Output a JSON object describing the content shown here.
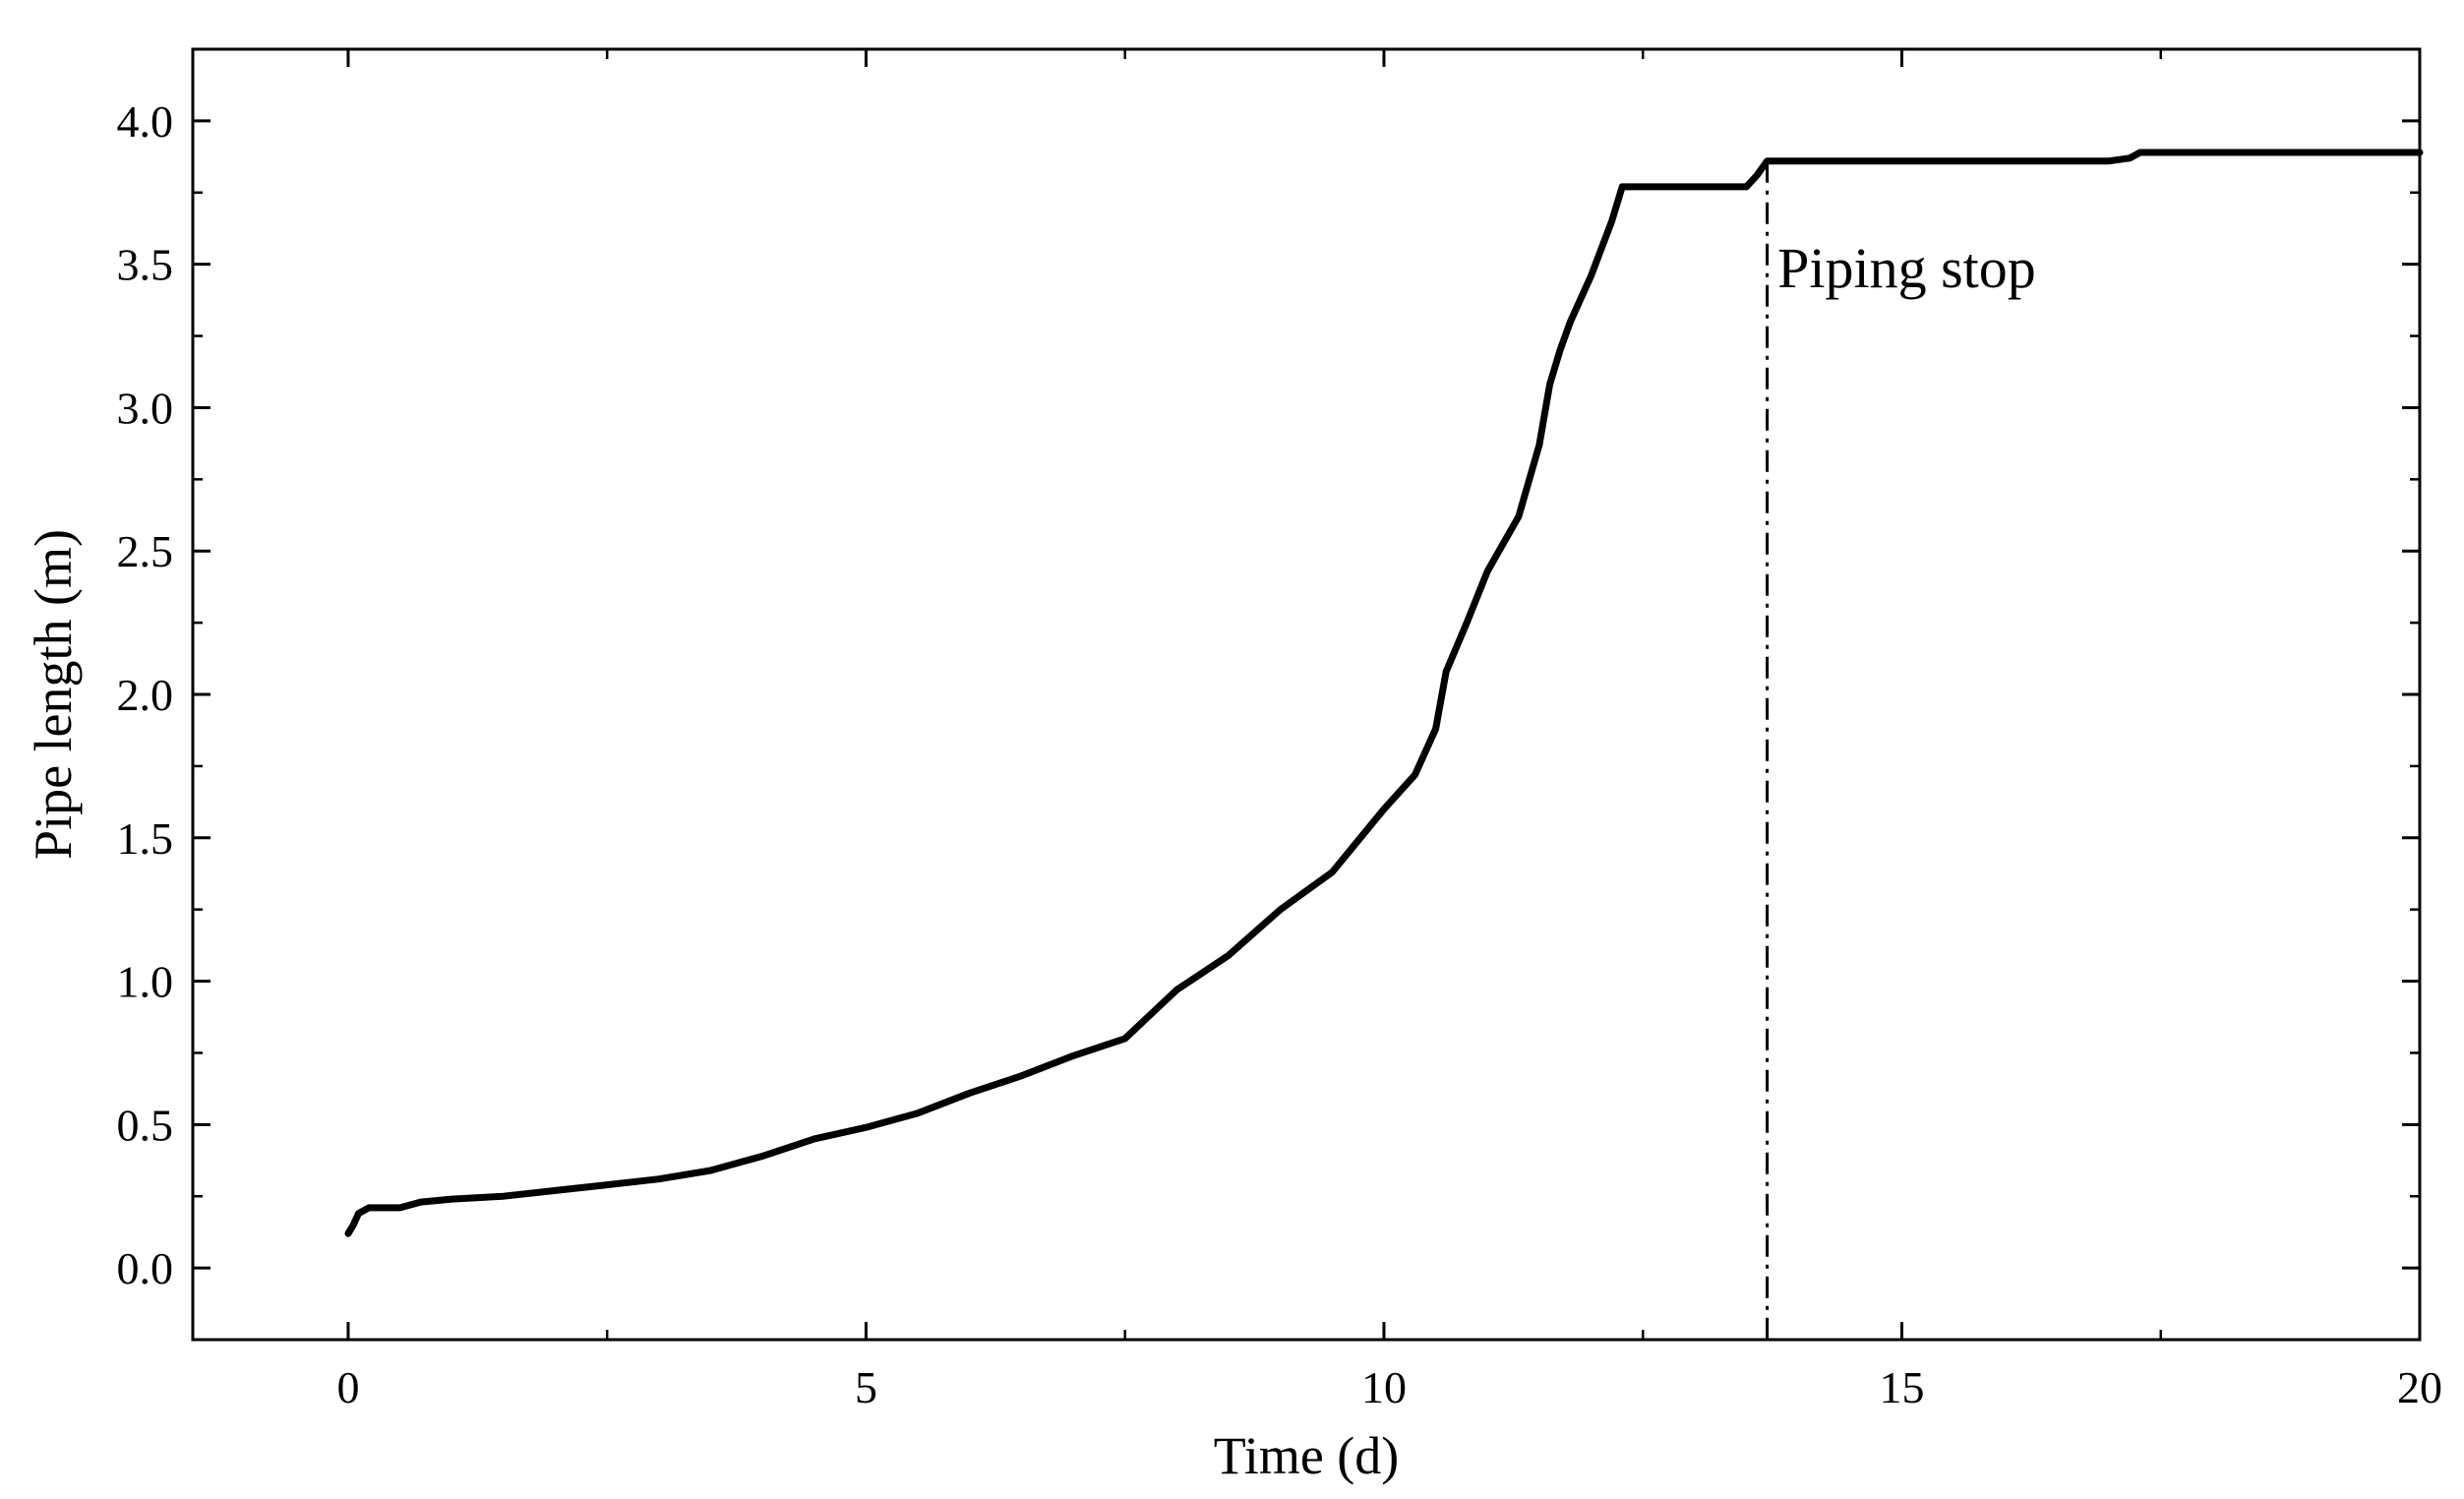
{
  "chart_data": {
    "type": "line",
    "xlabel": "Time (d)",
    "ylabel": "Pipe length  (m)",
    "xlim": [
      -1.5,
      20
    ],
    "ylim": [
      -0.25,
      4.25
    ],
    "x_ticks": [
      0,
      5,
      10,
      15,
      20
    ],
    "x_tick_labels": [
      "0",
      "5",
      "10",
      "15",
      "20"
    ],
    "y_ticks": [
      0.0,
      0.5,
      1.0,
      1.5,
      2.0,
      2.5,
      3.0,
      3.5,
      4.0
    ],
    "y_tick_labels": [
      "0.0",
      "0.5",
      "1.0",
      "1.5",
      "2.0",
      "2.5",
      "3.0",
      "3.5",
      "4.0"
    ],
    "grid": false,
    "line_color": "#000000",
    "series": [
      {
        "x": [
          0.0,
          0.05,
          0.1,
          0.2,
          0.3,
          0.5,
          0.7,
          1.0,
          1.5,
          2.0,
          2.5,
          3.0,
          3.5,
          4.0,
          4.5,
          5.0,
          5.5,
          6.0,
          6.5,
          7.0,
          7.5,
          8.0,
          8.5,
          9.0,
          9.5,
          10.0,
          10.3,
          10.5,
          10.6,
          10.8,
          11.0,
          11.3,
          11.5,
          11.6,
          11.7,
          11.8,
          12.0,
          12.2,
          12.3,
          12.5,
          13.0,
          13.5,
          13.6,
          13.7,
          14.0,
          15.0,
          16.0,
          17.0,
          17.2,
          17.3,
          18.0,
          19.0,
          20.0
        ],
        "y": [
          0.12,
          0.15,
          0.19,
          0.21,
          0.21,
          0.21,
          0.23,
          0.24,
          0.25,
          0.27,
          0.29,
          0.31,
          0.34,
          0.39,
          0.45,
          0.49,
          0.54,
          0.61,
          0.67,
          0.74,
          0.8,
          0.97,
          1.09,
          1.25,
          1.38,
          1.6,
          1.72,
          1.88,
          2.08,
          2.25,
          2.43,
          2.62,
          2.87,
          3.08,
          3.2,
          3.3,
          3.46,
          3.65,
          3.77,
          3.77,
          3.77,
          3.77,
          3.81,
          3.86,
          3.86,
          3.86,
          3.86,
          3.86,
          3.87,
          3.89,
          3.89,
          3.89,
          3.89
        ]
      }
    ],
    "vline": {
      "x": 13.7,
      "style": "dash-dot"
    },
    "annotations": [
      {
        "text": "Piping stop",
        "x": 13.8,
        "y": 3.42
      }
    ]
  }
}
